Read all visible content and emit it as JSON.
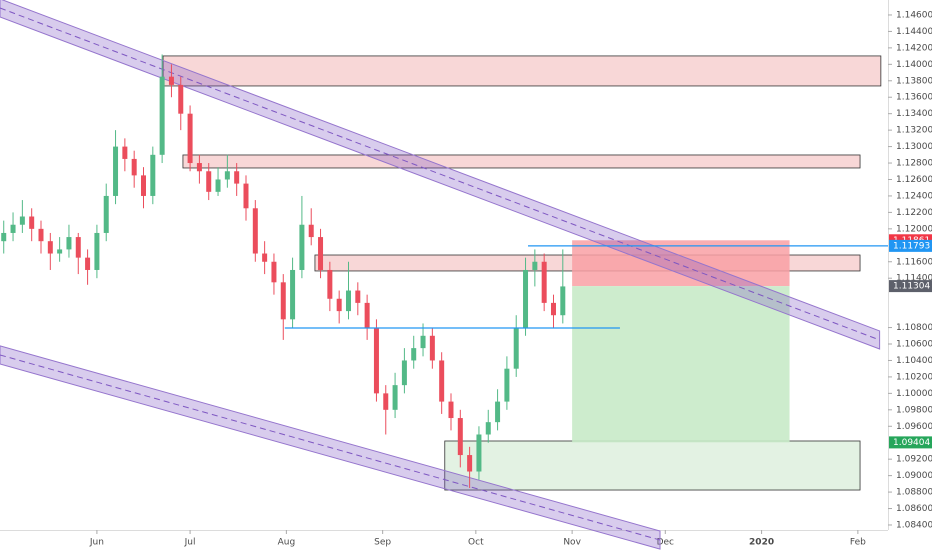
{
  "chart_data": {
    "type": "candlestick",
    "up_color": "#53b987",
    "down_color": "#eb4d5c",
    "xlim": [
      -0.2,
      285.7
    ],
    "ylim": [
      1.08339,
      1.14782
    ],
    "xticks": [
      {
        "value": 31,
        "label": "Jun"
      },
      {
        "value": 61,
        "label": "Jul"
      },
      {
        "value": 92,
        "label": "Aug"
      },
      {
        "value": 123,
        "label": "Sep"
      },
      {
        "value": 153,
        "label": "Oct"
      },
      {
        "value": 184,
        "label": "Nov"
      },
      {
        "value": 214,
        "label": "Dec"
      },
      {
        "value": 245,
        "label": "2020"
      },
      {
        "value": 276,
        "label": "Feb"
      }
    ],
    "yticks": [
      {
        "value": 1.146,
        "label": "1.14600"
      },
      {
        "value": 1.144,
        "label": "1.14400"
      },
      {
        "value": 1.142,
        "label": "1.14200"
      },
      {
        "value": 1.14,
        "label": "1.14000"
      },
      {
        "value": 1.138,
        "label": "1.13800"
      },
      {
        "value": 1.136,
        "label": "1.13600"
      },
      {
        "value": 1.134,
        "label": "1.13400"
      },
      {
        "value": 1.132,
        "label": "1.13200"
      },
      {
        "value": 1.13,
        "label": "1.13000"
      },
      {
        "value": 1.128,
        "label": "1.12800"
      },
      {
        "value": 1.126,
        "label": "1.12600"
      },
      {
        "value": 1.124,
        "label": "1.12400"
      },
      {
        "value": 1.122,
        "label": "1.12200"
      },
      {
        "value": 1.12,
        "label": "1.12000"
      },
      {
        "value": 1.116,
        "label": "1.11600"
      },
      {
        "value": 1.114,
        "label": "1.11400"
      },
      {
        "value": 1.108,
        "label": "1.10800"
      },
      {
        "value": 1.106,
        "label": "1.10600"
      },
      {
        "value": 1.104,
        "label": "1.10400"
      },
      {
        "value": 1.102,
        "label": "1.10200"
      },
      {
        "value": 1.1,
        "label": "1.10000"
      },
      {
        "value": 1.098,
        "label": "1.09800"
      },
      {
        "value": 1.096,
        "label": "1.09600"
      },
      {
        "value": 1.092,
        "label": "1.09200"
      },
      {
        "value": 1.09,
        "label": "1.09000"
      },
      {
        "value": 1.088,
        "label": "1.08800"
      },
      {
        "value": 1.086,
        "label": "1.08600"
      },
      {
        "value": 1.084,
        "label": "1.08400"
      }
    ],
    "x": [
      1,
      4,
      7,
      10,
      13,
      16,
      19,
      22,
      25,
      28,
      31,
      34,
      37,
      40,
      43,
      46,
      49,
      52,
      55,
      58,
      61,
      64,
      67,
      70,
      73,
      76,
      79,
      82,
      85,
      88,
      91,
      94,
      97,
      100,
      103,
      106,
      109,
      112,
      115,
      118,
      121,
      124,
      127,
      130,
      133,
      136,
      139,
      142,
      145,
      148,
      151,
      154,
      157,
      160,
      163,
      166,
      169,
      172,
      175,
      178,
      181
    ],
    "ohlc": [
      [
        1.1185,
        1.121,
        1.117,
        1.1195
      ],
      [
        1.1195,
        1.122,
        1.1185,
        1.1205
      ],
      [
        1.1205,
        1.1235,
        1.1195,
        1.1215
      ],
      [
        1.1215,
        1.1225,
        1.1185,
        1.12
      ],
      [
        1.12,
        1.121,
        1.117,
        1.1185
      ],
      [
        1.1185,
        1.1195,
        1.115,
        1.117
      ],
      [
        1.117,
        1.119,
        1.116,
        1.1175
      ],
      [
        1.1175,
        1.1205,
        1.1165,
        1.119
      ],
      [
        1.119,
        1.1195,
        1.1145,
        1.1165
      ],
      [
        1.1165,
        1.1175,
        1.1132,
        1.115
      ],
      [
        1.115,
        1.1205,
        1.114,
        1.1195
      ],
      [
        1.1195,
        1.1255,
        1.1185,
        1.124
      ],
      [
        1.124,
        1.132,
        1.123,
        1.13
      ],
      [
        1.13,
        1.131,
        1.127,
        1.1285
      ],
      [
        1.1285,
        1.1295,
        1.125,
        1.1265
      ],
      [
        1.1265,
        1.1275,
        1.1225,
        1.124
      ],
      [
        1.124,
        1.13,
        1.123,
        1.129
      ],
      [
        1.129,
        1.1412,
        1.128,
        1.1385
      ],
      [
        1.1385,
        1.14,
        1.136,
        1.1375
      ],
      [
        1.1375,
        1.1385,
        1.132,
        1.134
      ],
      [
        1.134,
        1.135,
        1.127,
        1.128
      ],
      [
        1.128,
        1.129,
        1.1255,
        1.127
      ],
      [
        1.127,
        1.128,
        1.1235,
        1.1245
      ],
      [
        1.1245,
        1.1275,
        1.124,
        1.126
      ],
      [
        1.126,
        1.129,
        1.125,
        1.127
      ],
      [
        1.127,
        1.128,
        1.124,
        1.1255
      ],
      [
        1.1255,
        1.1265,
        1.121,
        1.1225
      ],
      [
        1.1225,
        1.1235,
        1.116,
        1.117
      ],
      [
        1.117,
        1.1185,
        1.1145,
        1.116
      ],
      [
        1.116,
        1.117,
        1.112,
        1.1135
      ],
      [
        1.1135,
        1.1145,
        1.1065,
        1.109
      ],
      [
        1.109,
        1.1165,
        1.108,
        1.115
      ],
      [
        1.115,
        1.124,
        1.114,
        1.1205
      ],
      [
        1.1205,
        1.1225,
        1.118,
        1.119
      ],
      [
        1.119,
        1.12,
        1.114,
        1.115
      ],
      [
        1.115,
        1.116,
        1.11,
        1.1115
      ],
      [
        1.1115,
        1.1125,
        1.1085,
        1.11
      ],
      [
        1.11,
        1.116,
        1.109,
        1.1125
      ],
      [
        1.1125,
        1.1135,
        1.1095,
        1.111
      ],
      [
        1.111,
        1.112,
        1.1065,
        1.108
      ],
      [
        1.108,
        1.109,
        1.099,
        1.1
      ],
      [
        1.1,
        1.101,
        1.095,
        1.098
      ],
      [
        1.098,
        1.1025,
        1.097,
        1.101
      ],
      [
        1.101,
        1.1055,
        1.1,
        1.104
      ],
      [
        1.104,
        1.107,
        1.103,
        1.1055
      ],
      [
        1.1055,
        1.1085,
        1.1045,
        1.107
      ],
      [
        1.107,
        1.108,
        1.103,
        1.104
      ],
      [
        1.104,
        1.105,
        1.0975,
        1.099
      ],
      [
        1.099,
        1.1,
        1.0955,
        1.097
      ],
      [
        1.097,
        1.098,
        1.091,
        1.0925
      ],
      [
        1.0925,
        1.0935,
        1.0885,
        1.0905
      ],
      [
        1.0905,
        1.096,
        1.0895,
        1.095
      ],
      [
        1.095,
        1.098,
        1.094,
        1.0965
      ],
      [
        1.0965,
        1.1005,
        1.0955,
        1.099
      ],
      [
        1.099,
        1.1045,
        1.098,
        1.103
      ],
      [
        1.103,
        1.1095,
        1.102,
        1.108
      ],
      [
        1.108,
        1.1165,
        1.107,
        1.115
      ],
      [
        1.115,
        1.1175,
        1.113,
        1.116
      ],
      [
        1.116,
        1.117,
        1.11,
        1.111
      ],
      [
        1.111,
        1.112,
        1.108,
        1.1095
      ],
      [
        1.1095,
        1.1175,
        1.1085,
        1.113
      ]
    ],
    "zones": [
      {
        "x": [
          52.3,
          283.4
        ],
        "y": [
          1.14102,
          1.13737
        ],
        "color": "#f8d7d7"
      },
      {
        "x": [
          58.7,
          276.7
        ],
        "y": [
          1.12898,
          1.1274
        ],
        "color": "#f8d7d7"
      },
      {
        "x": [
          101.2,
          276.7
        ],
        "y": [
          1.11682,
          1.11488
        ],
        "color": "#f8d7d7"
      },
      {
        "x": [
          143.0,
          276.7
        ],
        "y": [
          1.09421,
          1.08825
        ],
        "color": "#e3f2e3"
      }
    ],
    "channels": [
      {
        "start": [
          -0.2,
          1.14685
        ],
        "end": [
          283.0,
          1.10649
        ],
        "width": 0.0011
      },
      {
        "start": [
          -0.2,
          1.10467
        ],
        "end": [
          212.3,
          1.08217
        ],
        "width": 0.0011
      }
    ],
    "lines": [
      {
        "x": [
          91.5,
          199.4
        ],
        "y": 1.10795,
        "color": "#2196f3"
      },
      {
        "x": [
          169.8,
          285.7
        ],
        "y": 1.11793,
        "color": "#2196f3"
      }
    ],
    "position": {
      "x": [
        184,
        254
      ],
      "stop_color": "#f9a0a4",
      "target_color": "#c8eac8"
    },
    "price_labels": [
      {
        "value": 1.11861,
        "color": "#f23645"
      },
      {
        "value": 1.11793,
        "color": "#2196f3"
      },
      {
        "value": 1.11304,
        "color": "#5d606b"
      },
      {
        "value": 1.09404,
        "color": "#26a65b"
      }
    ]
  }
}
